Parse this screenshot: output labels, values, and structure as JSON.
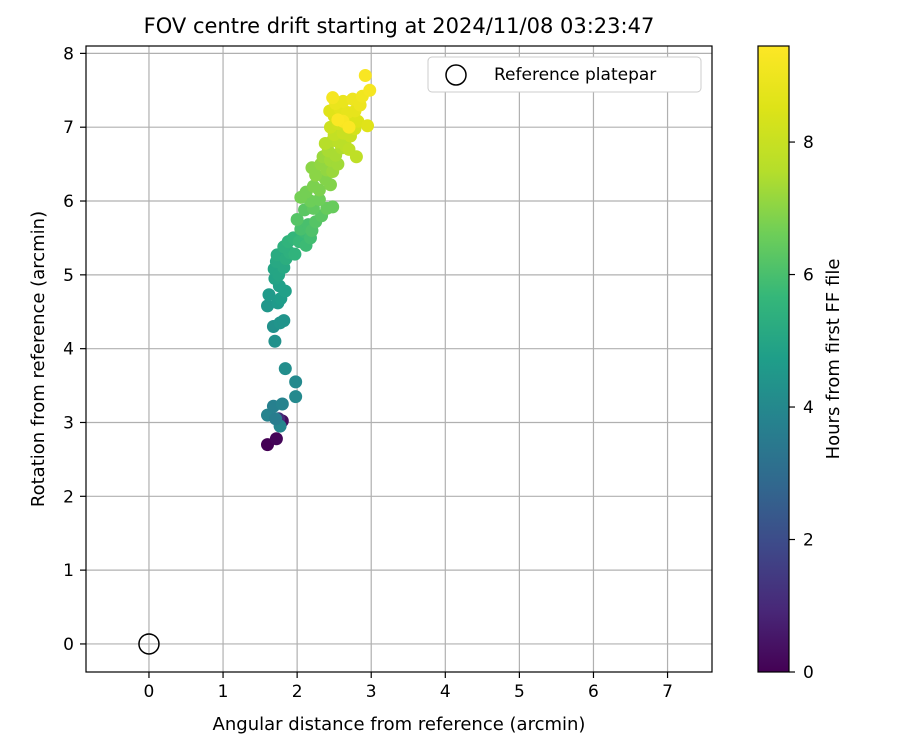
{
  "chart_data": {
    "type": "scatter",
    "title": "FOV centre drift starting at 2024/11/08 03:23:47",
    "xlabel": "Angular distance from reference (arcmin)",
    "ylabel": "Rotation from reference (arcmin)",
    "xlim": [
      -0.85,
      7.6
    ],
    "ylim": [
      -0.38,
      8.1
    ],
    "xticks": [
      0,
      1,
      2,
      3,
      4,
      5,
      6,
      7
    ],
    "yticks": [
      0,
      1,
      2,
      3,
      4,
      5,
      6,
      7,
      8
    ],
    "grid": true,
    "legend": {
      "placement": "top-right",
      "entries": [
        "Reference platepar"
      ]
    },
    "reference_point": {
      "name": "Reference platepar",
      "x": 0,
      "y": 0
    },
    "colorbar": {
      "label": "Hours from first FF file",
      "min": 0,
      "max": 9.45,
      "ticks": [
        0,
        2,
        4,
        6,
        8
      ],
      "colormap": "viridis"
    },
    "points": [
      {
        "x": 1.6,
        "y": 2.7,
        "h": 0.0
      },
      {
        "x": 1.72,
        "y": 2.78,
        "h": 0.1
      },
      {
        "x": 1.8,
        "y": 3.02,
        "h": 0.3
      },
      {
        "x": 1.75,
        "y": 3.05,
        "h": 1.0
      },
      {
        "x": 1.6,
        "y": 3.1,
        "h": 3.8
      },
      {
        "x": 1.68,
        "y": 3.22,
        "h": 3.7
      },
      {
        "x": 1.8,
        "y": 3.25,
        "h": 3.8
      },
      {
        "x": 1.77,
        "y": 2.95,
        "h": 3.9
      },
      {
        "x": 1.71,
        "y": 3.05,
        "h": 3.6
      },
      {
        "x": 1.98,
        "y": 3.35,
        "h": 4.0
      },
      {
        "x": 1.98,
        "y": 3.55,
        "h": 4.0
      },
      {
        "x": 1.84,
        "y": 3.73,
        "h": 4.2
      },
      {
        "x": 1.7,
        "y": 4.1,
        "h": 4.3
      },
      {
        "x": 1.68,
        "y": 4.3,
        "h": 4.3
      },
      {
        "x": 1.77,
        "y": 4.35,
        "h": 4.4
      },
      {
        "x": 1.82,
        "y": 4.38,
        "h": 4.4
      },
      {
        "x": 1.6,
        "y": 4.58,
        "h": 4.5
      },
      {
        "x": 1.74,
        "y": 4.62,
        "h": 4.6
      },
      {
        "x": 1.62,
        "y": 4.73,
        "h": 4.6
      },
      {
        "x": 1.78,
        "y": 4.68,
        "h": 4.7
      },
      {
        "x": 1.84,
        "y": 4.78,
        "h": 4.8
      },
      {
        "x": 1.76,
        "y": 4.85,
        "h": 4.8
      },
      {
        "x": 1.7,
        "y": 4.95,
        "h": 4.9
      },
      {
        "x": 1.69,
        "y": 5.08,
        "h": 5.0
      },
      {
        "x": 1.75,
        "y": 5.0,
        "h": 5.0
      },
      {
        "x": 1.82,
        "y": 5.1,
        "h": 5.1
      },
      {
        "x": 1.72,
        "y": 5.18,
        "h": 5.1
      },
      {
        "x": 1.73,
        "y": 5.27,
        "h": 5.2
      },
      {
        "x": 1.85,
        "y": 5.22,
        "h": 5.3
      },
      {
        "x": 1.9,
        "y": 5.3,
        "h": 5.4
      },
      {
        "x": 1.82,
        "y": 5.38,
        "h": 5.4
      },
      {
        "x": 1.97,
        "y": 5.28,
        "h": 5.5
      },
      {
        "x": 1.88,
        "y": 5.45,
        "h": 5.5
      },
      {
        "x": 1.95,
        "y": 5.5,
        "h": 5.6
      },
      {
        "x": 2.03,
        "y": 5.45,
        "h": 5.7
      },
      {
        "x": 2.12,
        "y": 5.4,
        "h": 5.8
      },
      {
        "x": 2.1,
        "y": 5.58,
        "h": 5.8
      },
      {
        "x": 2.18,
        "y": 5.5,
        "h": 5.9
      },
      {
        "x": 2.05,
        "y": 5.62,
        "h": 6.0
      },
      {
        "x": 2.15,
        "y": 5.68,
        "h": 6.0
      },
      {
        "x": 2.2,
        "y": 5.6,
        "h": 6.1
      },
      {
        "x": 2.0,
        "y": 5.75,
        "h": 6.2
      },
      {
        "x": 2.25,
        "y": 5.72,
        "h": 6.2
      },
      {
        "x": 2.33,
        "y": 5.8,
        "h": 6.3
      },
      {
        "x": 2.1,
        "y": 5.88,
        "h": 6.3
      },
      {
        "x": 2.22,
        "y": 5.9,
        "h": 6.4
      },
      {
        "x": 2.4,
        "y": 5.9,
        "h": 6.5
      },
      {
        "x": 2.48,
        "y": 5.92,
        "h": 6.5
      },
      {
        "x": 2.18,
        "y": 6.0,
        "h": 6.6
      },
      {
        "x": 2.3,
        "y": 6.02,
        "h": 6.6
      },
      {
        "x": 2.05,
        "y": 6.05,
        "h": 6.7
      },
      {
        "x": 2.12,
        "y": 6.12,
        "h": 6.7
      },
      {
        "x": 2.22,
        "y": 6.2,
        "h": 6.8
      },
      {
        "x": 2.3,
        "y": 6.15,
        "h": 6.8
      },
      {
        "x": 2.45,
        "y": 6.22,
        "h": 6.9
      },
      {
        "x": 2.38,
        "y": 6.3,
        "h": 6.9
      },
      {
        "x": 2.25,
        "y": 6.35,
        "h": 7.0
      },
      {
        "x": 2.2,
        "y": 6.45,
        "h": 7.0
      },
      {
        "x": 2.32,
        "y": 6.5,
        "h": 7.1
      },
      {
        "x": 2.4,
        "y": 6.42,
        "h": 7.1
      },
      {
        "x": 2.48,
        "y": 6.4,
        "h": 7.2
      },
      {
        "x": 2.35,
        "y": 6.6,
        "h": 7.2
      },
      {
        "x": 2.45,
        "y": 6.55,
        "h": 7.3
      },
      {
        "x": 2.55,
        "y": 6.5,
        "h": 7.3
      },
      {
        "x": 2.42,
        "y": 6.68,
        "h": 7.4
      },
      {
        "x": 2.52,
        "y": 6.62,
        "h": 7.4
      },
      {
        "x": 2.6,
        "y": 6.72,
        "h": 7.5
      },
      {
        "x": 2.38,
        "y": 6.78,
        "h": 7.6
      },
      {
        "x": 2.48,
        "y": 6.82,
        "h": 7.6
      },
      {
        "x": 2.56,
        "y": 6.8,
        "h": 7.7
      },
      {
        "x": 2.65,
        "y": 6.75,
        "h": 7.7
      },
      {
        "x": 2.7,
        "y": 6.7,
        "h": 7.8
      },
      {
        "x": 2.8,
        "y": 6.6,
        "h": 7.8
      },
      {
        "x": 2.5,
        "y": 6.9,
        "h": 7.9
      },
      {
        "x": 2.62,
        "y": 6.92,
        "h": 8.0
      },
      {
        "x": 2.72,
        "y": 6.88,
        "h": 8.0
      },
      {
        "x": 2.45,
        "y": 7.0,
        "h": 8.1
      },
      {
        "x": 2.55,
        "y": 7.05,
        "h": 8.2
      },
      {
        "x": 2.68,
        "y": 7.02,
        "h": 8.2
      },
      {
        "x": 2.78,
        "y": 6.98,
        "h": 8.3
      },
      {
        "x": 2.5,
        "y": 7.15,
        "h": 8.4
      },
      {
        "x": 2.6,
        "y": 7.12,
        "h": 8.4
      },
      {
        "x": 2.72,
        "y": 7.1,
        "h": 8.5
      },
      {
        "x": 2.82,
        "y": 7.08,
        "h": 8.5
      },
      {
        "x": 2.95,
        "y": 7.02,
        "h": 8.6
      },
      {
        "x": 2.44,
        "y": 7.22,
        "h": 8.6
      },
      {
        "x": 2.58,
        "y": 7.25,
        "h": 8.7
      },
      {
        "x": 2.68,
        "y": 7.2,
        "h": 8.8
      },
      {
        "x": 2.78,
        "y": 7.22,
        "h": 8.8
      },
      {
        "x": 2.52,
        "y": 7.32,
        "h": 8.9
      },
      {
        "x": 2.62,
        "y": 7.35,
        "h": 8.9
      },
      {
        "x": 2.75,
        "y": 7.38,
        "h": 9.0
      },
      {
        "x": 2.85,
        "y": 7.3,
        "h": 9.0
      },
      {
        "x": 2.88,
        "y": 7.42,
        "h": 9.1
      },
      {
        "x": 2.98,
        "y": 7.5,
        "h": 9.2
      },
      {
        "x": 2.48,
        "y": 7.4,
        "h": 9.2
      },
      {
        "x": 2.92,
        "y": 7.7,
        "h": 9.3
      },
      {
        "x": 2.62,
        "y": 7.08,
        "h": 9.3
      },
      {
        "x": 2.7,
        "y": 7.0,
        "h": 9.4
      },
      {
        "x": 2.55,
        "y": 7.1,
        "h": 9.4
      }
    ]
  }
}
